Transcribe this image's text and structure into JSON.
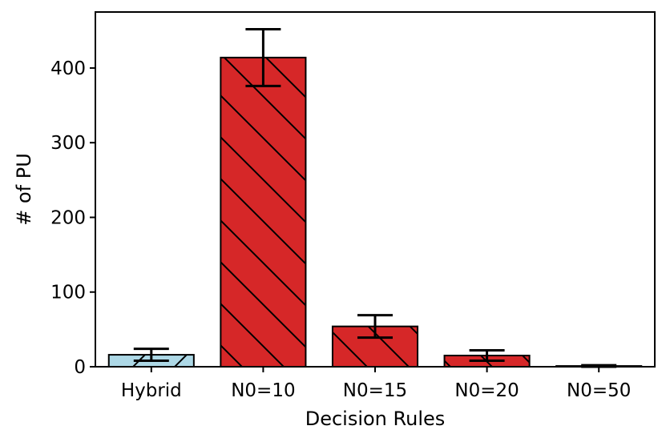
{
  "chart_data": {
    "type": "bar",
    "xlabel": "Decision Rules",
    "ylabel": "# of PU",
    "categories": [
      "Hybrid",
      "N0=10",
      "N0=15",
      "N0=20",
      "N0=50"
    ],
    "values": [
      16,
      414,
      54,
      15,
      1
    ],
    "errors": [
      8,
      38,
      15,
      7,
      1
    ],
    "colors": [
      "#add8e6",
      "#d62728",
      "#d62728",
      "#d62728",
      "#d62728"
    ],
    "hatch": [
      "forward-slash",
      "back-slash",
      "back-slash",
      "back-slash",
      "back-slash"
    ],
    "ylim": [
      0,
      475
    ],
    "yticks": [
      0,
      100,
      200,
      300,
      400
    ],
    "grid": false,
    "legend": "none"
  }
}
